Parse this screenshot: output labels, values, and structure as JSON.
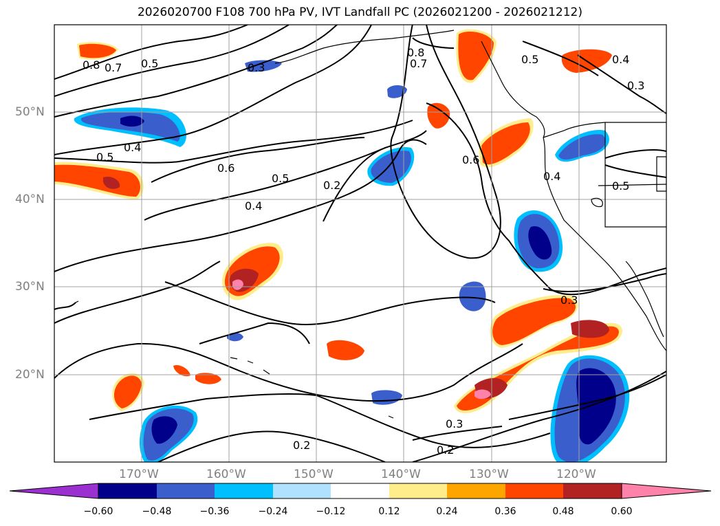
{
  "title": "2026020700 F108 700 hPa PV, IVT Landfall PC (2026021200 - 2026021212)",
  "lat_labels": [
    "50°N",
    "40°N",
    "30°N",
    "20°N"
  ],
  "lon_labels": [
    "170°W",
    "160°W",
    "150°W",
    "140°W",
    "130°W",
    "120°W"
  ],
  "contour_labels": [
    "0.8",
    "0.7",
    "0.5",
    "0.3",
    "0.4",
    "0.5",
    "0.6",
    "0.5",
    "0.4",
    "0.2",
    "0.8",
    "0.7",
    "0.6",
    "0.5",
    "0.4",
    "0.3",
    "0.4",
    "0.5",
    "0.3",
    "0.3",
    "0.2",
    "0.2"
  ],
  "colorbar": {
    "ticks": [
      "−0.60",
      "−0.48",
      "−0.36",
      "−0.24",
      "−0.12",
      "0.12",
      "0.24",
      "0.36",
      "0.48",
      "0.60"
    ],
    "colors": [
      "#9b30d0",
      "#00008b",
      "#3a5fcd",
      "#00bfff",
      "#b0e2ff",
      "#ffffff",
      "#ffec8b",
      "#ffa500",
      "#ff4500",
      "#b22222",
      "#ff82ab"
    ]
  },
  "shading_colors": {
    "neg_outer": "#00bfff",
    "neg_mid": "#3a5fcd",
    "neg_core": "#00008b",
    "pos_outer": "#ffec8b",
    "pos_mid": "#ff4500",
    "pos_core": "#b22222",
    "pos_peak": "#ff82ab"
  }
}
